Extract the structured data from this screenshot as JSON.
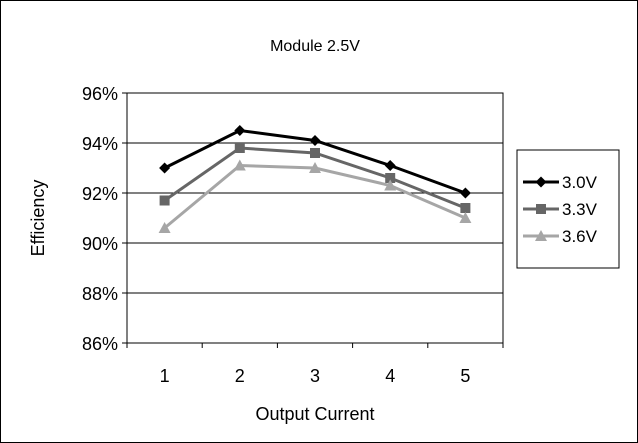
{
  "chart_data": {
    "type": "line",
    "title": "Module 2.5V",
    "xlabel": "Output Current",
    "ylabel": "Efficiency",
    "x": [
      1,
      2,
      3,
      4,
      5
    ],
    "x_tick_labels": [
      "1",
      "2",
      "3",
      "4",
      "5"
    ],
    "ylim": [
      86,
      96
    ],
    "y_ticks": [
      86,
      88,
      90,
      92,
      94,
      96
    ],
    "y_tick_labels": [
      "86%",
      "88%",
      "90%",
      "92%",
      "94%",
      "96%"
    ],
    "grid": "horizontal",
    "legend_position": "right",
    "series": [
      {
        "name": "3.0V",
        "values": [
          93.0,
          94.5,
          94.1,
          93.1,
          92.0
        ],
        "color": "#000000",
        "marker": "diamond"
      },
      {
        "name": "3.3V",
        "values": [
          91.7,
          93.8,
          93.6,
          92.6,
          91.4
        ],
        "color": "#666666",
        "marker": "square"
      },
      {
        "name": "3.6V",
        "values": [
          90.6,
          93.1,
          93.0,
          92.3,
          91.0
        ],
        "color": "#a6a6a6",
        "marker": "triangle"
      }
    ]
  }
}
